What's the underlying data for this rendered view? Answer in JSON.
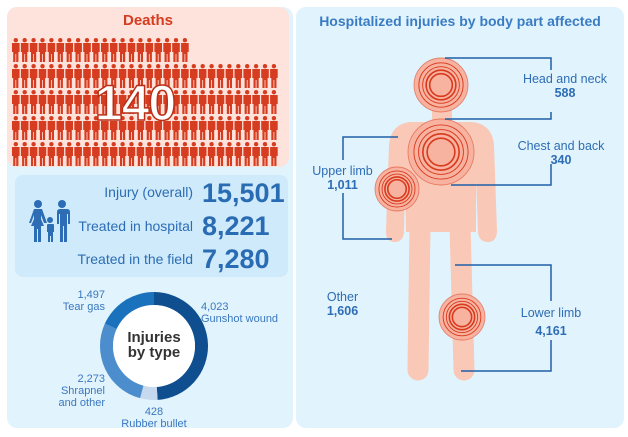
{
  "deaths": {
    "title": "Deaths",
    "count": "140",
    "icon": "person-icon",
    "color": "#d63c1f"
  },
  "summary": {
    "icon": "family-icon",
    "rows": [
      {
        "label": "Injury (overall)",
        "value": "15,501"
      },
      {
        "label": "Treated in hospital",
        "value": "8,221"
      },
      {
        "label": "Treated in the field",
        "value": "7,280"
      }
    ]
  },
  "injuries_by_type": {
    "title_line1": "Injuries",
    "title_line2": "by type",
    "segments": [
      {
        "label": "Gunshot wound",
        "value": 4023,
        "value_text": "4,023",
        "color": "#0f4f8f"
      },
      {
        "label": "Rubber bullet",
        "value": 428,
        "value_text": "428",
        "color": "#c7d9ef"
      },
      {
        "label_line1": "Shrapnel",
        "label_line2": "and other",
        "value": 2273,
        "value_text": "2,273",
        "color": "#4b8dcd"
      },
      {
        "label": "Tear gas",
        "value": 1497,
        "value_text": "1,497",
        "color": "#1a72bd"
      }
    ]
  },
  "body_parts": {
    "title": "Hospitalized injuries by body part affected",
    "head": {
      "label": "Head and neck",
      "value": "588"
    },
    "chest": {
      "label": "Chest and back",
      "value": "340"
    },
    "upper": {
      "label": "Upper limb",
      "value": "1,011"
    },
    "other": {
      "label": "Other",
      "value": "1,606"
    },
    "lower": {
      "label": "Lower limb",
      "value": "4,161"
    },
    "body_color": "#f9c8b6",
    "ring_color": "#d9391d",
    "line_color": "#1f5fa8"
  }
}
